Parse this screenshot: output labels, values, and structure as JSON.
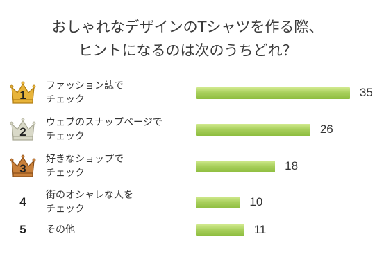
{
  "title": {
    "line1": "おしゃれなデザインのTシャツを作る際、",
    "line2": "ヒントになるのは次のうちどれ？"
  },
  "colors": {
    "bar": "#a9d05d",
    "gold": "#e8b43a",
    "silver": "#d9d9c8",
    "bronze": "#c9803a"
  },
  "rows": [
    {
      "rank": "1",
      "crown": "gold-crown-icon",
      "label_lines": [
        "ファッション誌で",
        "チェック"
      ],
      "value": 35
    },
    {
      "rank": "2",
      "crown": "silver-crown-icon",
      "label_lines": [
        "ウェブのスナップページで",
        "チェック"
      ],
      "value": 26
    },
    {
      "rank": "3",
      "crown": "bronze-crown-icon",
      "label_lines": [
        "好きなショップで",
        "チェック"
      ],
      "value": 18
    },
    {
      "rank": "4",
      "crown": "",
      "label_lines": [
        "街のオシャレな人を",
        "チェック"
      ],
      "value": 10
    },
    {
      "rank": "5",
      "crown": "",
      "label_lines": [
        "その他"
      ],
      "value": 11
    }
  ],
  "chart_data": {
    "type": "bar",
    "orientation": "horizontal",
    "categories": [
      "ファッション誌でチェック",
      "ウェブのスナップページでチェック",
      "好きなショップでチェック",
      "街のオシャレな人をチェック",
      "その他"
    ],
    "values": [
      35,
      26,
      18,
      10,
      11
    ],
    "grid": false,
    "legend": "none"
  }
}
